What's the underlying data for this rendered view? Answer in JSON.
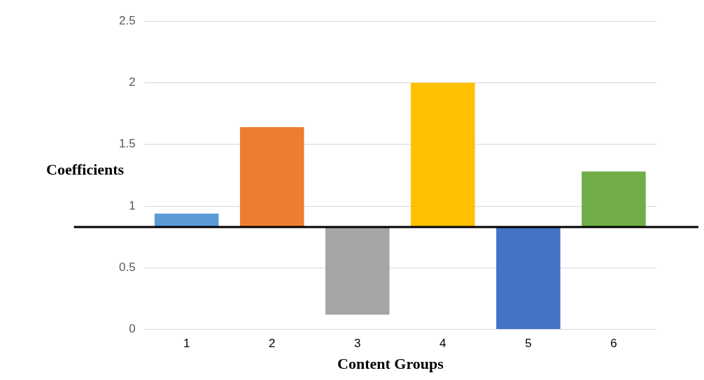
{
  "chart_data": {
    "type": "bar",
    "xlabel": "Content Groups",
    "ylabel": "Coefficients",
    "categories": [
      "1",
      "2",
      "3",
      "4",
      "5",
      "6"
    ],
    "base": [
      0.83,
      0.83,
      0.83,
      0.83,
      0.83,
      0.83
    ],
    "values": [
      0.11,
      0.81,
      -0.71,
      1.17,
      -0.83,
      0.45
    ],
    "colors": [
      "#5b9bd5",
      "#ed7d31",
      "#a5a5a5",
      "#ffc000",
      "#4472c4",
      "#70ad47"
    ],
    "ylim": [
      0,
      2.5
    ],
    "yticks": [
      0,
      0.5,
      1,
      1.5,
      2,
      2.5
    ],
    "grid": "y",
    "ref_lines": [
      {
        "axis": "y",
        "value": 0.83,
        "label": null,
        "color": "#000000"
      }
    ]
  }
}
